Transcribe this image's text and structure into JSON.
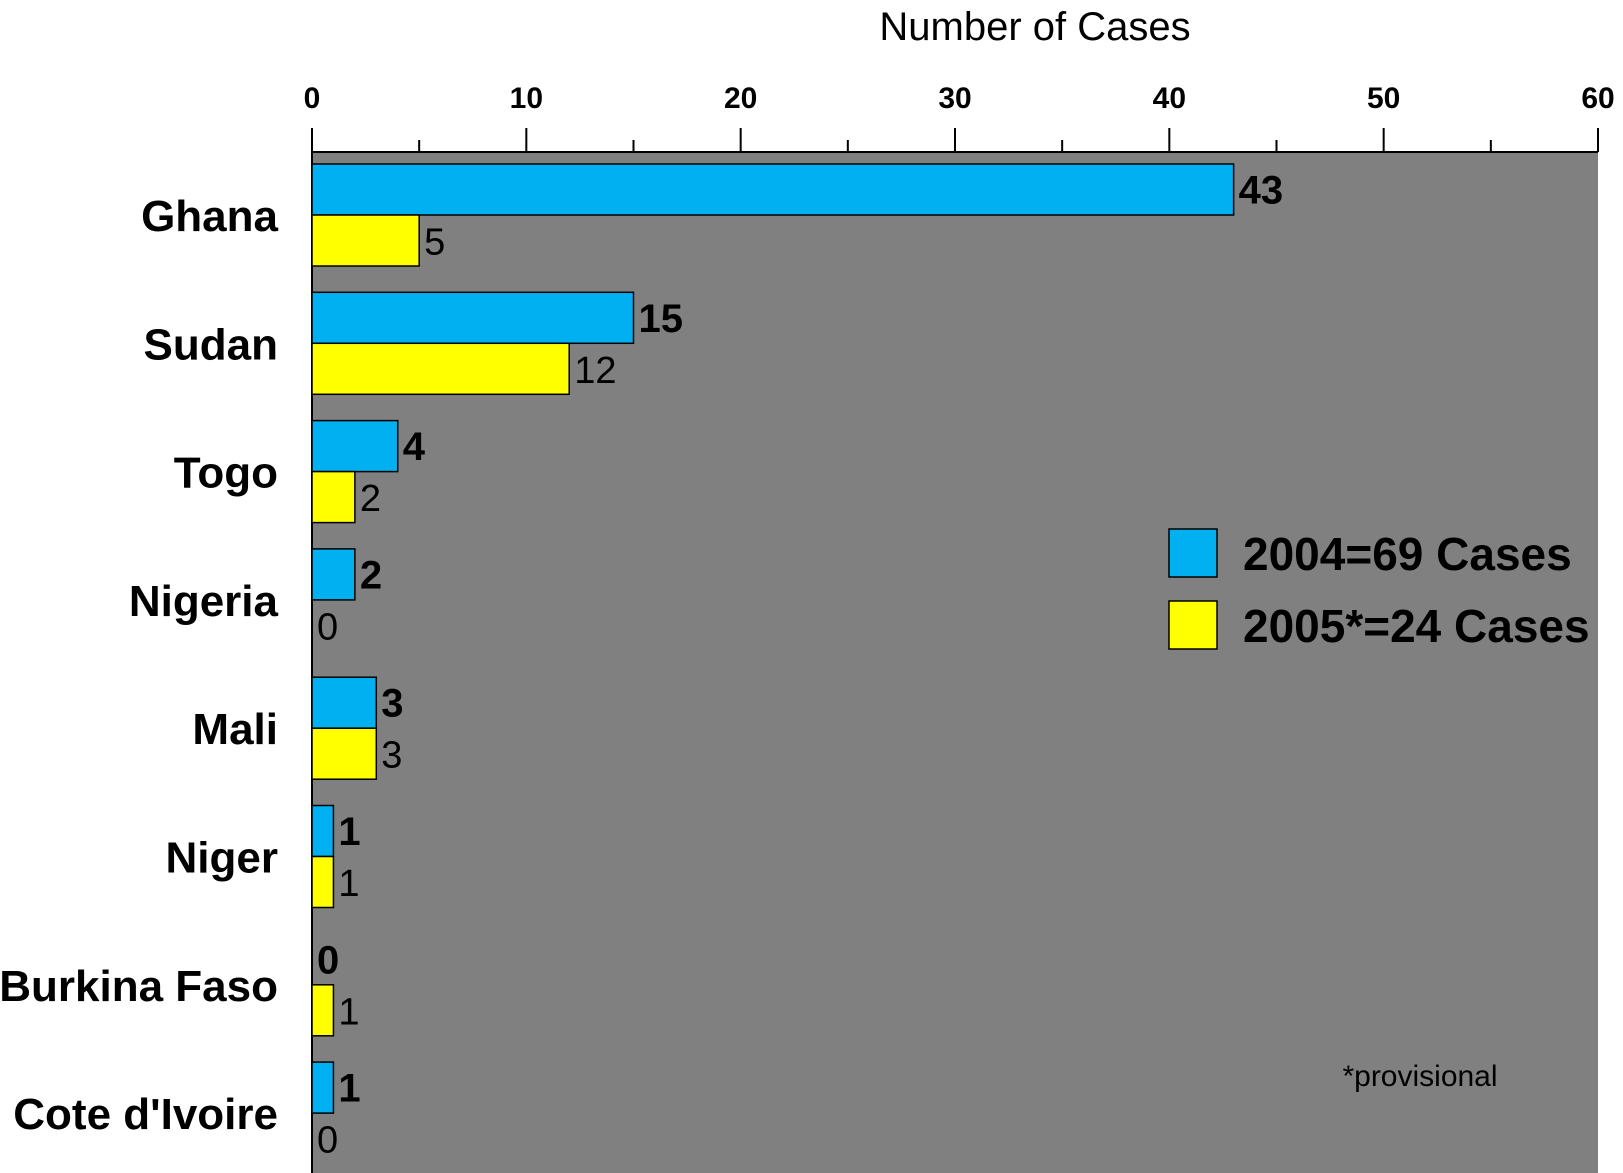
{
  "chart_data": {
    "type": "bar",
    "orientation": "horizontal",
    "xlabel": "Number of Cases",
    "xlim": [
      0,
      60
    ],
    "xticks": [
      0,
      10,
      20,
      30,
      40,
      50,
      60
    ],
    "categories": [
      "Ghana",
      "Sudan",
      "Togo",
      "Nigeria",
      "Mali",
      "Niger",
      "Burkina Faso",
      "Cote d'Ivoire"
    ],
    "series": [
      {
        "name": "2004=69 Cases",
        "color": "#00B0F0",
        "values": [
          43,
          15,
          4,
          2,
          3,
          1,
          0,
          1
        ]
      },
      {
        "name": "2005*=24 Cases",
        "color": "#FFFF00",
        "values": [
          5,
          12,
          2,
          0,
          3,
          1,
          1,
          0
        ]
      }
    ],
    "plot_background": "#808080",
    "legend_position": "right",
    "grid": false,
    "annotation": "*provisional"
  }
}
